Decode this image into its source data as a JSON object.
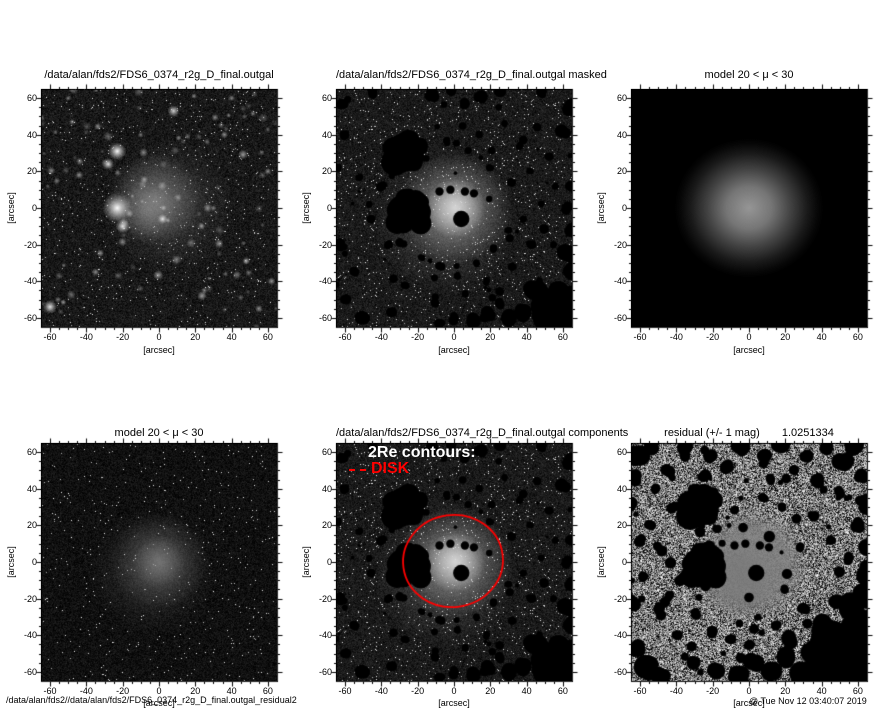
{
  "figure": {
    "background": "#ffffff",
    "accent_red": "#ff0000",
    "plot_frame_color": "#000000"
  },
  "axes": {
    "x_label": "[arcsec]",
    "y_label": "[arcsec]",
    "ticks": [
      "-60",
      "-40",
      "-20",
      "0",
      "20",
      "40",
      "60"
    ],
    "range": [
      -65,
      65
    ]
  },
  "panels": [
    {
      "id": "observed",
      "title": "/data/alan/fds2/FDS6_0374_r2g_D_final.outgal"
    },
    {
      "id": "masked",
      "title": "/data/alan/fds2/FDS6_0374_r2g_D_final.outgal masked"
    },
    {
      "id": "model-smooth",
      "title": "model 20 < μ < 30"
    },
    {
      "id": "model-noisy",
      "title": "model 20 < μ < 30"
    },
    {
      "id": "components",
      "title": "/data/alan/fds2/FDS6_0374_r2g_D_final.outgal components",
      "annotation": "2Re contours:",
      "component": "DISK"
    },
    {
      "id": "residual",
      "title": "residual  (+/- 1 mag)",
      "value": "1.0251334"
    }
  ],
  "footer": {
    "left_path": "/data/alan/fds2//data/alan/fds2/FDS6_0374_r2g_D_final.outgal_residual2",
    "right_overlap": "@",
    "timestamp": "Tue Nov 12 03:40:07 2019"
  },
  "chart_data": [
    {
      "type": "heatmap",
      "title": "/data/alan/fds2/FDS6_0374_r2g_D_final.outgal",
      "xlabel": "[arcsec]",
      "ylabel": "[arcsec]",
      "xlim": [
        -65,
        65
      ],
      "ylim": [
        -65,
        65
      ],
      "xticks": [
        -60,
        -40,
        -20,
        0,
        20,
        40,
        60
      ],
      "yticks": [
        -60,
        -40,
        -20,
        0,
        20,
        40,
        60
      ],
      "description": "grayscale galaxy image with foreground stars; bright star at (-23,0), stars at (-23,31),(-28,24),(-20,-10); diffuse galaxy centered near (0,0)"
    },
    {
      "type": "heatmap",
      "title": "/data/alan/fds2/FDS6_0374_r2g_D_final.outgal masked",
      "xlabel": "[arcsec]",
      "ylabel": "[arcsec]",
      "xlim": [
        -65,
        65
      ],
      "ylim": [
        -65,
        65
      ],
      "xticks": [
        -60,
        -40,
        -20,
        0,
        20,
        40,
        60
      ],
      "yticks": [
        -60,
        -40,
        -20,
        0,
        20,
        40,
        60
      ],
      "description": "same galaxy with black masked regions: large blobs near (-27,29) and (-24,-3), circle at (4,-6), dot arc above center, clusters lower right"
    },
    {
      "type": "heatmap",
      "title": "model 20 < μ < 30",
      "xlabel": "[arcsec]",
      "ylabel": "[arcsec]",
      "xlim": [
        -65,
        65
      ],
      "ylim": [
        -65,
        65
      ],
      "xticks": [
        -60,
        -40,
        -20,
        0,
        20,
        40,
        60
      ],
      "yticks": [
        -60,
        -40,
        -20,
        0,
        20,
        40,
        60
      ],
      "description": "smooth axisymmetric model, radial brightness peak at (0,0) fading to black by r≈38 arcsec"
    },
    {
      "type": "heatmap",
      "title": "model 20 < μ < 30",
      "xlabel": "[arcsec]",
      "ylabel": "[arcsec]",
      "xlim": [
        -65,
        65
      ],
      "ylim": [
        -65,
        65
      ],
      "xticks": [
        -60,
        -40,
        -20,
        0,
        20,
        40,
        60
      ],
      "yticks": [
        -60,
        -40,
        -20,
        0,
        20,
        40,
        60
      ],
      "description": "noise-added model realization, faint diffuse blob centered (0,0)"
    },
    {
      "type": "heatmap",
      "title": "/data/alan/fds2/FDS6_0374_r2g_D_final.outgal components",
      "xlabel": "[arcsec]",
      "ylabel": "[arcsec]",
      "xlim": [
        -65,
        65
      ],
      "ylim": [
        -65,
        65
      ],
      "xticks": [
        -60,
        -40,
        -20,
        0,
        20,
        40,
        60
      ],
      "yticks": [
        -60,
        -40,
        -20,
        0,
        20,
        40,
        60
      ],
      "annotations": [
        "2Re contours:",
        "DISK"
      ],
      "overlay": "red ellipse contour centered ≈(1,0), semi-axes ≈27×25 arcsec"
    },
    {
      "type": "heatmap",
      "title": "residual  (+/- 1 mag)",
      "value": 1.0251334,
      "xlabel": "[arcsec]",
      "ylabel": "[arcsec]",
      "xlim": [
        -65,
        65
      ],
      "ylim": [
        -65,
        65
      ],
      "xticks": [
        -60,
        -40,
        -20,
        0,
        20,
        40,
        60
      ],
      "yticks": [
        -60,
        -40,
        -20,
        0,
        20,
        40,
        60
      ],
      "description": "salt-and-pepper residual map with black masked blobs and smooth gray subtracted-galaxy patch at center"
    }
  ]
}
